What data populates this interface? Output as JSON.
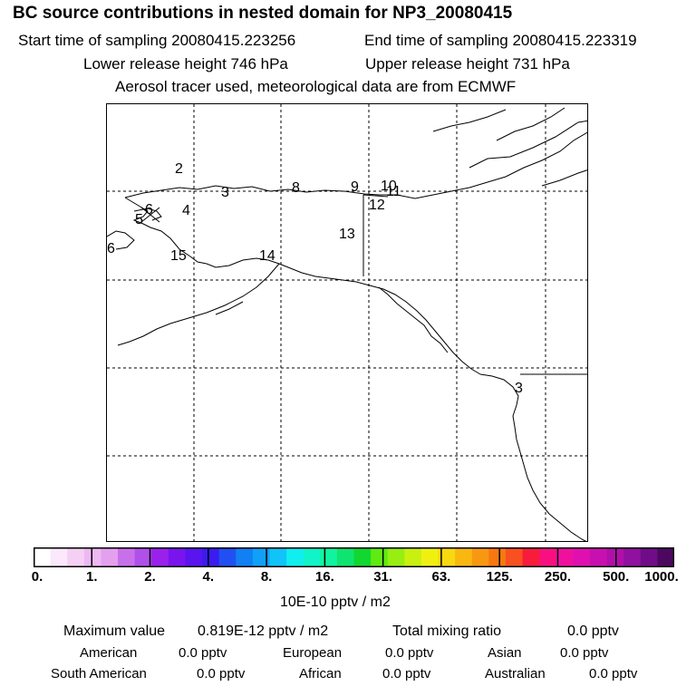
{
  "header": {
    "title": "BC  source contributions in nested domain for NP3_20080415",
    "start_time": "Start time of sampling 20080415.223256",
    "end_time": "End time of sampling 20080415.223319",
    "lower_height": "Lower release height  746 hPa",
    "upper_height": "Upper release height  731 hPa",
    "tracer_note": "Aerosol tracer used, meteorological data are from ECMWF"
  },
  "map": {
    "labels": [
      {
        "id": "2",
        "text": "2"
      },
      {
        "id": "3a",
        "text": "3"
      },
      {
        "id": "8",
        "text": "8"
      },
      {
        "id": "9",
        "text": "9"
      },
      {
        "id": "10",
        "text": "10"
      },
      {
        "id": "11",
        "text": "11"
      },
      {
        "id": "12",
        "text": "12"
      },
      {
        "id": "6a",
        "text": "6"
      },
      {
        "id": "4",
        "text": "4"
      },
      {
        "id": "5",
        "text": "5"
      },
      {
        "id": "13",
        "text": "13"
      },
      {
        "id": "6b",
        "text": "6"
      },
      {
        "id": "15",
        "text": "15"
      },
      {
        "id": "14",
        "text": "14"
      },
      {
        "id": "3b",
        "text": "3"
      }
    ]
  },
  "colorbar": {
    "colors": [
      "#ffffff",
      "#fbe8fb",
      "#f5d0f5",
      "#eeb8f2",
      "#e4a0ee",
      "#c870ea",
      "#b050ea",
      "#9a20ec",
      "#7a14ee",
      "#5a14f0",
      "#3a1cf0",
      "#2050f2",
      "#1080f4",
      "#10a0f6",
      "#10c4f8",
      "#10eef0",
      "#10f4c8",
      "#10f4a0",
      "#10e470",
      "#10d830",
      "#60ea10",
      "#98ee10",
      "#c8f010",
      "#f0f010",
      "#f8d810",
      "#f8b810",
      "#f89810",
      "#f87810",
      "#f85020",
      "#f81c3c",
      "#f81080",
      "#f010a0",
      "#e010b0",
      "#c810b0",
      "#b010a8",
      "#9010a0",
      "#700c88",
      "#4c0860"
    ],
    "ticks": [
      "0.",
      "1.",
      "2.",
      "4.",
      "8.",
      "16.",
      "31.",
      "63.",
      "125.",
      "250.",
      "500.",
      "1000."
    ],
    "unit": "10E-10 pptv / m2"
  },
  "summary": {
    "max_label": "Maximum value",
    "max_value": "0.819E-12 pptv / m2",
    "total_label": "Total mixing ratio",
    "total_value": "0.0 pptv"
  },
  "sources": [
    {
      "name": "American",
      "value": "0.0 pptv"
    },
    {
      "name": "European",
      "value": "0.0 pptv"
    },
    {
      "name": "Asian",
      "value": "0.0 pptv"
    },
    {
      "name": "South American",
      "value": "0.0 pptv"
    },
    {
      "name": "African",
      "value": "0.0 pptv"
    },
    {
      "name": "Australian",
      "value": "0.0 pptv"
    }
  ]
}
